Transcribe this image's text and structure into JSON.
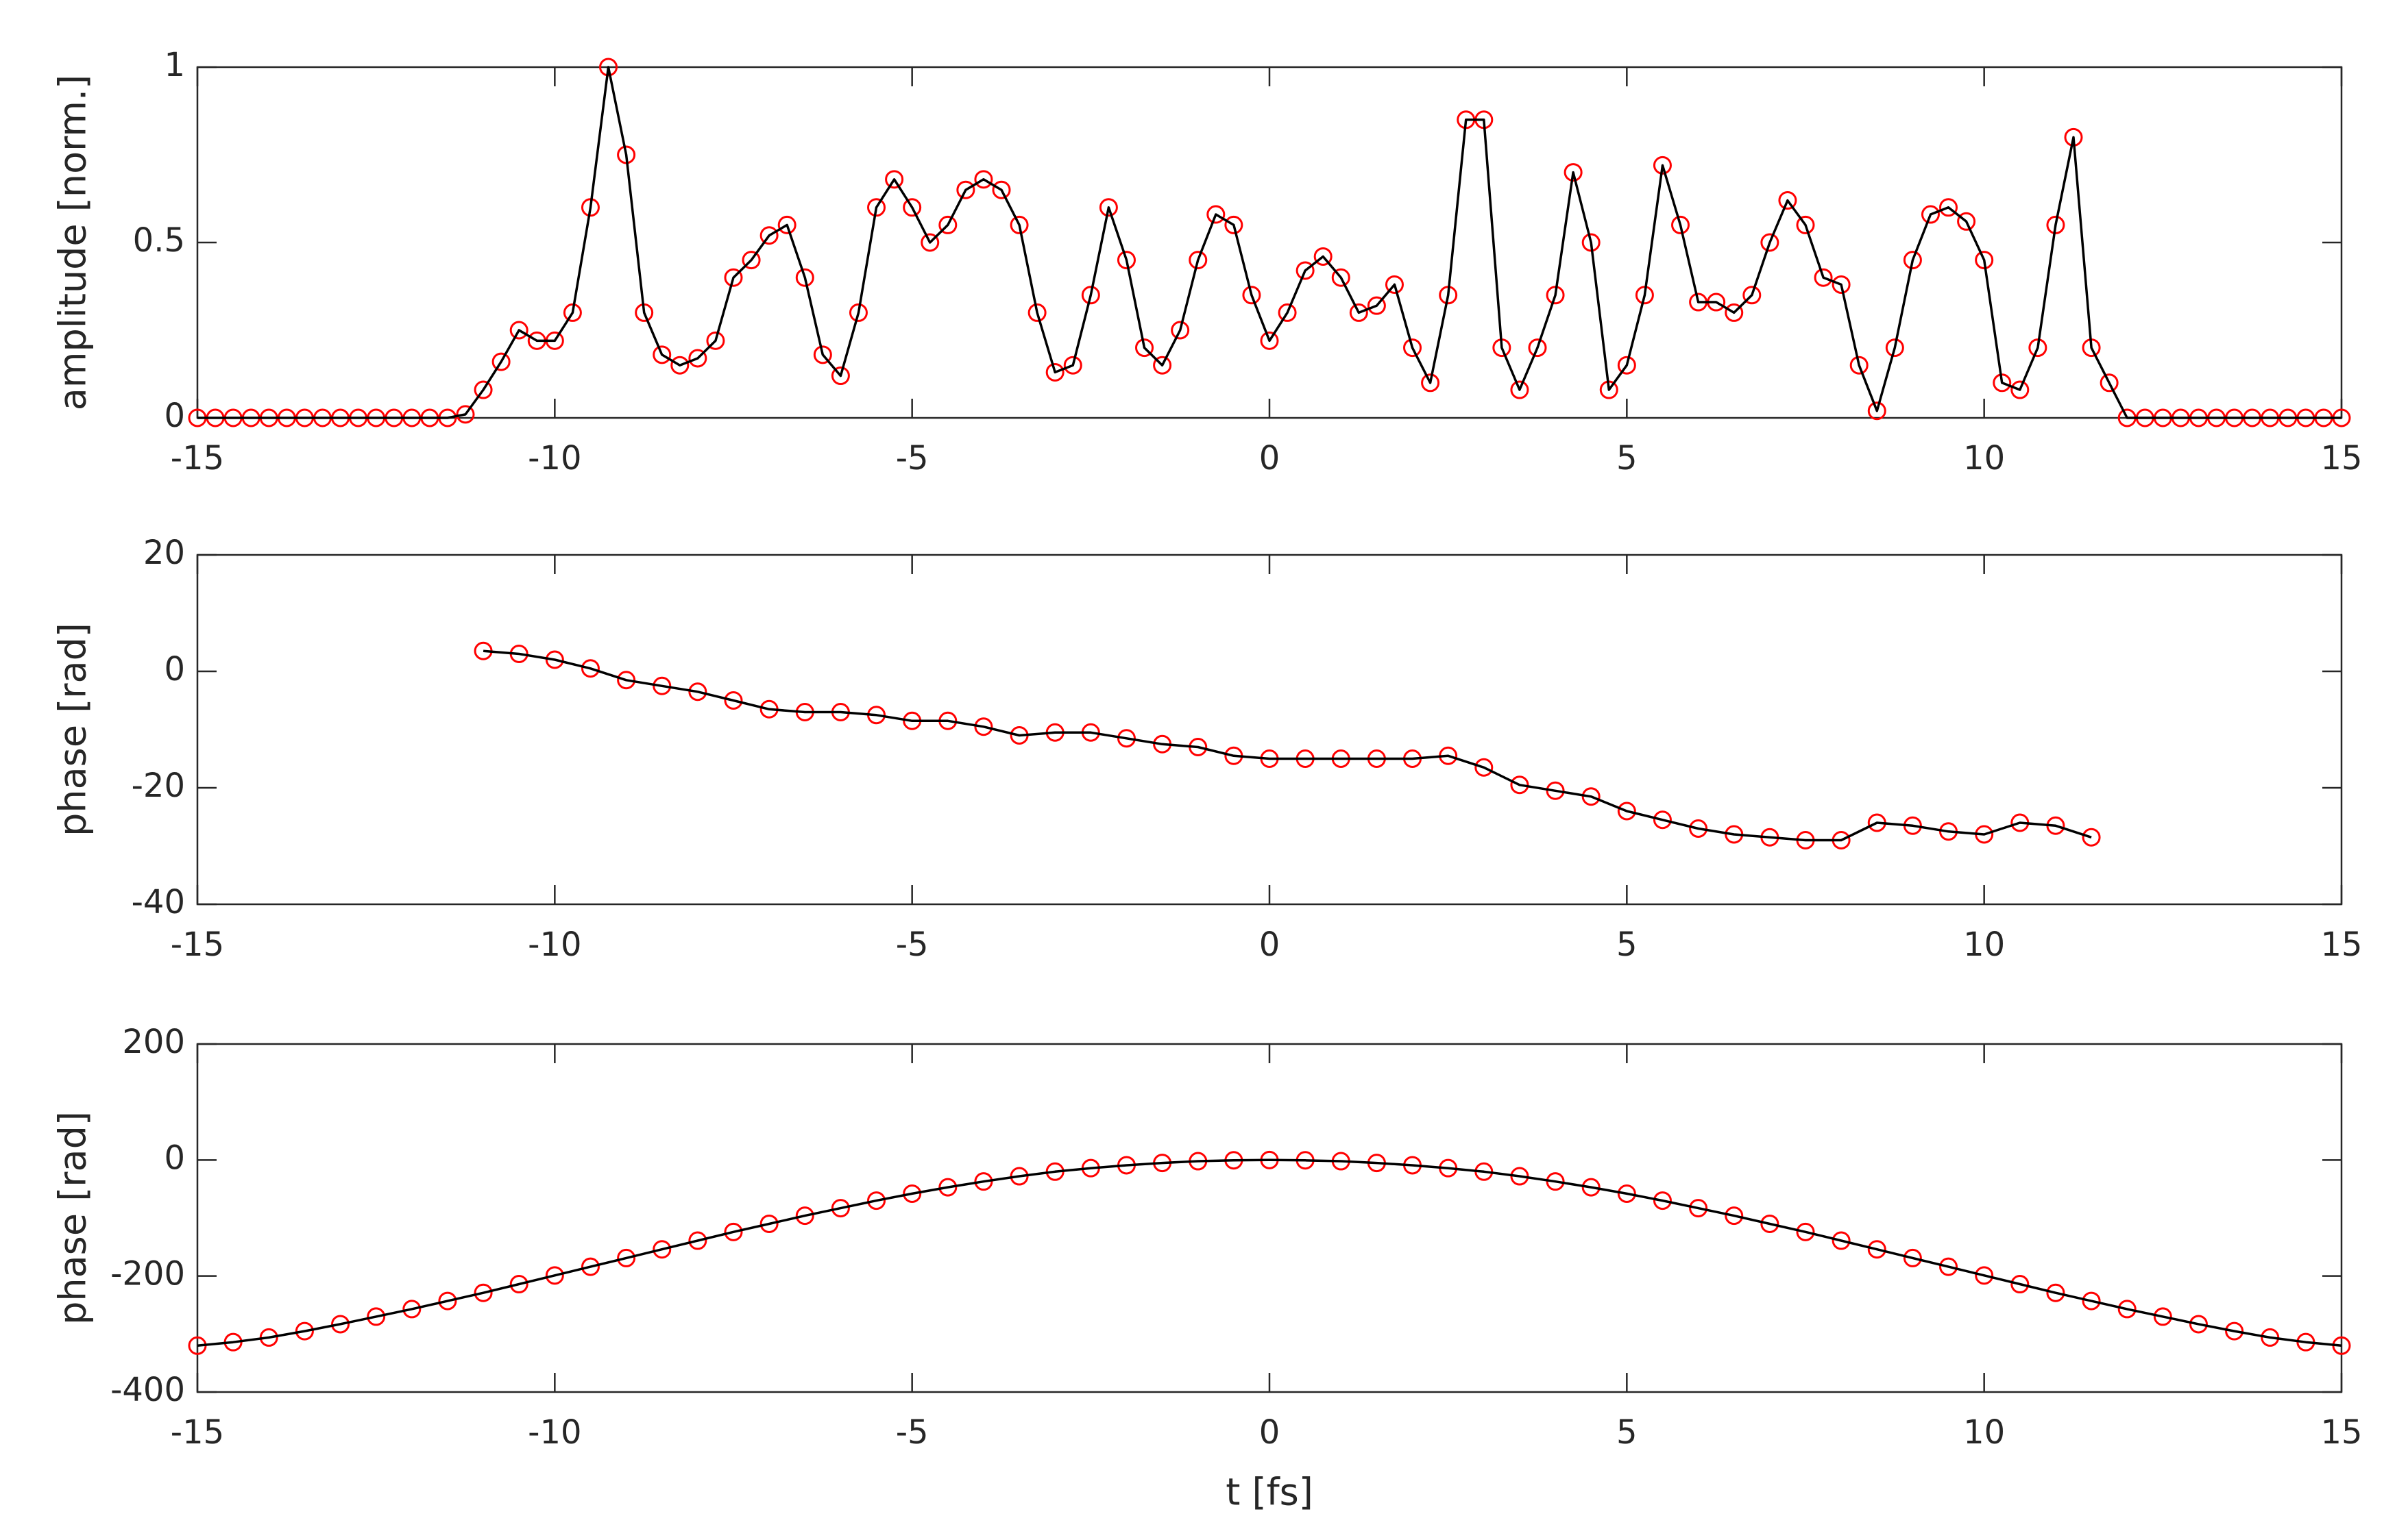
{
  "chart_data": [
    {
      "type": "line",
      "ylabel": "amplitude [norm.]",
      "x": [
        -15,
        -14.75,
        -14.5,
        -14.25,
        -14,
        -13.75,
        -13.5,
        -13.25,
        -13,
        -12.75,
        -12.5,
        -12.25,
        -12,
        -11.75,
        -11.5,
        -11.25,
        -11,
        -10.75,
        -10.5,
        -10.25,
        -10,
        -9.75,
        -9.5,
        -9.25,
        -9,
        -8.75,
        -8.5,
        -8.25,
        -8,
        -7.75,
        -7.5,
        -7.25,
        -7,
        -6.75,
        -6.5,
        -6.25,
        -6,
        -5.75,
        -5.5,
        -5.25,
        -5,
        -4.75,
        -4.5,
        -4.25,
        -4,
        -3.75,
        -3.5,
        -3.25,
        -3,
        -2.75,
        -2.5,
        -2.25,
        -2,
        -1.75,
        -1.5,
        -1.25,
        -1,
        -0.75,
        -0.5,
        -0.25,
        0,
        0.25,
        0.5,
        0.75,
        1,
        1.25,
        1.5,
        1.75,
        2,
        2.25,
        2.5,
        2.75,
        3,
        3.25,
        3.5,
        3.75,
        4,
        4.25,
        4.5,
        4.75,
        5,
        5.25,
        5.5,
        5.75,
        6,
        6.25,
        6.5,
        6.75,
        7,
        7.25,
        7.5,
        7.75,
        8,
        8.25,
        8.5,
        8.75,
        9,
        9.25,
        9.5,
        9.75,
        10,
        10.25,
        10.5,
        10.75,
        11,
        11.25,
        11.5,
        11.75,
        12,
        12.25,
        12.5,
        12.75,
        13,
        13.25,
        13.5,
        13.75,
        14,
        14.25,
        14.5,
        14.75,
        15
      ],
      "series": [
        {
          "color": "#ff0000",
          "marker": "circle",
          "values": [
            0,
            0,
            0,
            0,
            0,
            0,
            0,
            0,
            0,
            0,
            0,
            0,
            0,
            0,
            0,
            0.01,
            0.08,
            0.16,
            0.25,
            0.22,
            0.22,
            0.3,
            0.6,
            1,
            0.75,
            0.3,
            0.18,
            0.15,
            0.17,
            0.22,
            0.4,
            0.45,
            0.52,
            0.55,
            0.4,
            0.18,
            0.12,
            0.3,
            0.6,
            0.68,
            0.6,
            0.5,
            0.55,
            0.65,
            0.68,
            0.65,
            0.55,
            0.3,
            0.13,
            0.15,
            0.35,
            0.6,
            0.45,
            0.2,
            0.15,
            0.25,
            0.45,
            0.58,
            0.55,
            0.35,
            0.22,
            0.3,
            0.42,
            0.46,
            0.4,
            0.3,
            0.32,
            0.38,
            0.2,
            0.1,
            0.35,
            0.85,
            0.85,
            0.2,
            0.08,
            0.2,
            0.35,
            0.7,
            0.5,
            0.08,
            0.15,
            0.35,
            0.72,
            0.55,
            0.33,
            0.33,
            0.3,
            0.35,
            0.5,
            0.62,
            0.55,
            0.4,
            0.38,
            0.15,
            0.02,
            0.2,
            0.45,
            0.58,
            0.6,
            0.56,
            0.45,
            0.1,
            0.08,
            0.2,
            0.55,
            0.8,
            0.2,
            0.1,
            0,
            0,
            0,
            0,
            0,
            0,
            0,
            0,
            0,
            0,
            0,
            0,
            0
          ]
        },
        {
          "color": "#000000",
          "values": [
            0,
            0,
            0,
            0,
            0,
            0,
            0,
            0,
            0,
            0,
            0,
            0,
            0,
            0,
            0,
            0.01,
            0.08,
            0.16,
            0.25,
            0.22,
            0.22,
            0.3,
            0.6,
            1,
            0.75,
            0.3,
            0.18,
            0.15,
            0.17,
            0.22,
            0.4,
            0.45,
            0.52,
            0.55,
            0.4,
            0.18,
            0.12,
            0.3,
            0.6,
            0.68,
            0.6,
            0.5,
            0.55,
            0.65,
            0.68,
            0.65,
            0.55,
            0.3,
            0.13,
            0.15,
            0.35,
            0.6,
            0.45,
            0.2,
            0.15,
            0.25,
            0.45,
            0.58,
            0.55,
            0.35,
            0.22,
            0.3,
            0.42,
            0.46,
            0.4,
            0.3,
            0.32,
            0.38,
            0.2,
            0.1,
            0.35,
            0.85,
            0.85,
            0.2,
            0.08,
            0.2,
            0.35,
            0.7,
            0.5,
            0.08,
            0.15,
            0.35,
            0.72,
            0.55,
            0.33,
            0.33,
            0.3,
            0.35,
            0.5,
            0.62,
            0.55,
            0.4,
            0.38,
            0.15,
            0.02,
            0.2,
            0.45,
            0.58,
            0.6,
            0.56,
            0.45,
            0.1,
            0.08,
            0.2,
            0.55,
            0.8,
            0.2,
            0.1,
            0,
            0,
            0,
            0,
            0,
            0,
            0,
            0,
            0,
            0,
            0,
            0,
            0
          ]
        }
      ],
      "xlim": [
        -15,
        15
      ],
      "xticks": [
        -15,
        -10,
        -5,
        0,
        5,
        10,
        15
      ],
      "ylim": [
        0,
        1
      ],
      "yticks": [
        0,
        0.5,
        1
      ]
    },
    {
      "type": "line",
      "ylabel": "phase [rad]",
      "x": [
        -15,
        -14.5,
        -14,
        -13.5,
        -13,
        -12.5,
        -12,
        -11.5,
        -11,
        -10.5,
        -10,
        -9.5,
        -9,
        -8.5,
        -8,
        -7.5,
        -7,
        -6.5,
        -6,
        -5.5,
        -5,
        -4.5,
        -4,
        -3.5,
        -3,
        -2.5,
        -2,
        -1.5,
        -1,
        -0.5,
        0,
        0.5,
        1,
        1.5,
        2,
        2.5,
        3,
        3.5,
        4,
        4.5,
        5,
        5.5,
        6,
        6.5,
        7,
        7.5,
        8,
        8.5,
        9,
        9.5,
        10,
        10.5,
        11,
        11.5,
        12,
        12.5,
        13,
        13.5,
        14,
        14.5,
        15
      ],
      "series": [
        {
          "color": "#ff0000",
          "marker": "circle",
          "values": [
            null,
            null,
            null,
            null,
            null,
            null,
            null,
            null,
            3.5,
            3,
            2,
            0.5,
            -1.5,
            -2.5,
            -3.5,
            -5,
            -6.5,
            -7,
            -7,
            -7.5,
            -8.5,
            -8.5,
            -9.5,
            -11,
            -10.5,
            -10.5,
            -11.5,
            -12.5,
            -13,
            -14.5,
            -15,
            -15,
            -15,
            -15,
            -15,
            -14.5,
            -16.5,
            -19.5,
            -20.5,
            -21.5,
            -24,
            -25.5,
            -27,
            -28,
            -28.5,
            -29,
            -29,
            -26,
            -26.5,
            -27.5,
            -28,
            -26,
            -26.5,
            -28.5,
            null,
            null,
            null,
            null,
            null,
            null,
            null
          ]
        },
        {
          "color": "#000000",
          "values": [
            null,
            null,
            null,
            null,
            null,
            null,
            null,
            null,
            3.5,
            3,
            2,
            0.5,
            -1.5,
            -2.5,
            -3.5,
            -5,
            -6.5,
            -7,
            -7,
            -7.5,
            -8.5,
            -8.5,
            -9.5,
            -11,
            -10.5,
            -10.5,
            -11.5,
            -12.5,
            -13,
            -14.5,
            -15,
            -15,
            -15,
            -15,
            -15,
            -14.5,
            -16.5,
            -19.5,
            -20.5,
            -21.5,
            -24,
            -25.5,
            -27,
            -28,
            -28.5,
            -29,
            -29,
            -26,
            -26.5,
            -27.5,
            -28,
            -26,
            -26.5,
            -28.5,
            null,
            null,
            null,
            null,
            null,
            null,
            null
          ]
        }
      ],
      "xlim": [
        -15,
        15
      ],
      "xticks": [
        -15,
        -10,
        -5,
        0,
        5,
        10,
        15
      ],
      "ylim": [
        -40,
        20
      ],
      "yticks": [
        -40,
        -20,
        0,
        20
      ]
    },
    {
      "type": "line",
      "ylabel": "phase [rad]",
      "xlabel": "t [fs]",
      "x": [
        -15,
        -14.5,
        -14,
        -13.5,
        -13,
        -12.5,
        -12,
        -11.5,
        -11,
        -10.5,
        -10,
        -9.5,
        -9,
        -8.5,
        -8,
        -7.5,
        -7,
        -6.5,
        -6,
        -5.5,
        -5,
        -4.5,
        -4,
        -3.5,
        -3,
        -2.5,
        -2,
        -1.5,
        -1,
        -0.5,
        0,
        0.5,
        1,
        1.5,
        2,
        2.5,
        3,
        3.5,
        4,
        4.5,
        5,
        5.5,
        6,
        6.5,
        7,
        7.5,
        8,
        8.5,
        9,
        9.5,
        10,
        10.5,
        11,
        11.5,
        12,
        12.5,
        13,
        13.5,
        14,
        14.5,
        15
      ],
      "series": [
        {
          "color": "#ff0000",
          "marker": "circle",
          "values": [
            -320,
            -314,
            -306,
            -295,
            -283,
            -270,
            -257,
            -243,
            -229,
            -214,
            -199,
            -184,
            -169,
            -154,
            -139,
            -124,
            -110,
            -96,
            -83,
            -70,
            -58,
            -47,
            -37,
            -28,
            -20,
            -14,
            -9,
            -5,
            -2,
            -0.5,
            0,
            -0.5,
            -2,
            -5,
            -9,
            -14,
            -20,
            -28,
            -37,
            -47,
            -58,
            -70,
            -83,
            -96,
            -110,
            -124,
            -139,
            -154,
            -169,
            -184,
            -199,
            -214,
            -229,
            -243,
            -257,
            -270,
            -283,
            -295,
            -306,
            -314,
            -320
          ]
        },
        {
          "color": "#000000",
          "values": [
            -320,
            -314,
            -306,
            -295,
            -283,
            -270,
            -257,
            -243,
            -229,
            -214,
            -199,
            -184,
            -169,
            -154,
            -139,
            -124,
            -110,
            -96,
            -83,
            -70,
            -58,
            -47,
            -37,
            -28,
            -20,
            -14,
            -9,
            -5,
            -2,
            -0.5,
            0,
            -0.5,
            -2,
            -5,
            -9,
            -14,
            -20,
            -28,
            -37,
            -47,
            -58,
            -70,
            -83,
            -96,
            -110,
            -124,
            -139,
            -154,
            -169,
            -184,
            -199,
            -214,
            -229,
            -243,
            -257,
            -270,
            -283,
            -295,
            -306,
            -314,
            -320
          ]
        }
      ],
      "xlim": [
        -15,
        15
      ],
      "xticks": [
        -15,
        -10,
        -5,
        0,
        5,
        10,
        15
      ],
      "ylim": [
        -400,
        200
      ],
      "yticks": [
        -400,
        -200,
        0,
        200
      ]
    }
  ]
}
